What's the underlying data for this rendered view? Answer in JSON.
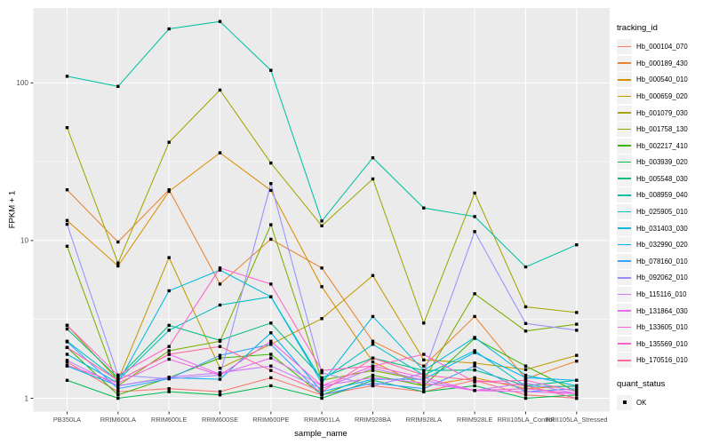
{
  "figure": {
    "background": "#FFFFFF",
    "panel_bg": "#EBEBEB",
    "grid_major": "#FFFFFF",
    "grid_minor": "#FFFFFF",
    "tick_color": "#333333",
    "tick_label_color": "#4D4D4D",
    "title_color": "#000000",
    "legend_key_bg": "#F2F2F2",
    "point_color": "#000000"
  },
  "chart_data": {
    "type": "line",
    "title": "",
    "xlabel": "sample_name",
    "ylabel": "FPKM + 1",
    "y_scale": "log10",
    "ylim": [
      0.95,
      290
    ],
    "y_ticks": [
      1,
      10,
      100
    ],
    "y_minor_breaks": [
      3.1623,
      31.623
    ],
    "grid": true,
    "legend_position": "right",
    "legend_title": "tracking_id",
    "quant_legend": {
      "title": "quant_status",
      "label": "OK"
    },
    "categories": [
      "PB350LA",
      "RRIM600LA",
      "RRIM600LE",
      "RRIM600SE",
      "RRIM600PE",
      "RRIM901LA",
      "RRIM928BA",
      "RRIM928LA",
      "RRIM928LE",
      "RRII105LA_Control",
      "RRII105LA_Stressed"
    ],
    "series": [
      {
        "name": "Hb_000104_070",
        "color": "#F8766D",
        "values": [
          1.7,
          1.1,
          1.15,
          1.1,
          1.35,
          1.05,
          1.2,
          1.1,
          1.3,
          1.05,
          1.0
        ]
      },
      {
        "name": "Hb_000189_430",
        "color": "#EA8331",
        "values": [
          21,
          9.8,
          21,
          5.3,
          10.2,
          6.7,
          2.3,
          1.6,
          3.3,
          1.33,
          1.72
        ]
      },
      {
        "name": "Hb_000540_010",
        "color": "#D89000",
        "values": [
          13.4,
          6.9,
          20.5,
          36,
          20.8,
          5.1,
          1.7,
          1.2,
          1.35,
          1.15,
          1.2
        ]
      },
      {
        "name": "Hb_000659_020",
        "color": "#C09B00",
        "values": [
          2.9,
          1.3,
          7.8,
          1.55,
          2.2,
          3.2,
          6.0,
          1.75,
          1.67,
          1.52,
          1.87
        ]
      },
      {
        "name": "Hb_001079_030",
        "color": "#A3A500",
        "values": [
          52,
          7.2,
          42,
          90,
          31,
          12.4,
          24.6,
          3.0,
          20,
          3.8,
          3.5
        ]
      },
      {
        "name": "Hb_001758_130",
        "color": "#7CAE00",
        "values": [
          9.2,
          1.2,
          2.0,
          2.3,
          12.6,
          1.3,
          1.5,
          1.3,
          4.6,
          2.67,
          2.95
        ]
      },
      {
        "name": "Hb_002217_410",
        "color": "#39B600",
        "values": [
          2.1,
          1.05,
          1.35,
          1.8,
          1.9,
          1.05,
          1.4,
          1.2,
          2.4,
          1.6,
          1.1
        ]
      },
      {
        "name": "Hb_003939_020",
        "color": "#00BB4E",
        "values": [
          1.3,
          1.0,
          1.1,
          1.05,
          1.2,
          1.0,
          1.3,
          1.1,
          1.2,
          1.0,
          1.05
        ]
      },
      {
        "name": "Hb_005548_030",
        "color": "#00BF7D",
        "values": [
          2.75,
          1.35,
          2.9,
          2.33,
          3.0,
          1.35,
          1.8,
          1.5,
          1.51,
          1.2,
          1.3
        ]
      },
      {
        "name": "Hb_008959_040",
        "color": "#00C1A3",
        "values": [
          110,
          95,
          220,
          245,
          120,
          13.3,
          33.5,
          16.1,
          14.2,
          6.8,
          9.4
        ]
      },
      {
        "name": "Hb_025905_010",
        "color": "#00BFC4",
        "values": [
          2.3,
          1.3,
          2.7,
          3.9,
          4.4,
          1.3,
          2.2,
          1.4,
          2.0,
          1.19,
          1.19
        ]
      },
      {
        "name": "Hb_031403_030",
        "color": "#00BAE0",
        "values": [
          1.9,
          1.25,
          4.8,
          6.5,
          4.4,
          1.25,
          3.3,
          1.5,
          2.43,
          1.4,
          1.2
        ]
      },
      {
        "name": "Hb_032990_020",
        "color": "#00B0F6",
        "values": [
          1.6,
          1.2,
          1.35,
          1.32,
          2.6,
          1.1,
          1.32,
          1.32,
          1.95,
          1.35,
          1.3
        ]
      },
      {
        "name": "Hb_078160_010",
        "color": "#35A2FF",
        "values": [
          2.28,
          1.15,
          1.33,
          1.87,
          2.2,
          1.05,
          1.25,
          1.15,
          1.6,
          1.1,
          1.15
        ]
      },
      {
        "name": "Hb_092062_010",
        "color": "#9590FF",
        "values": [
          12.7,
          1.4,
          1.33,
          1.4,
          23,
          1.45,
          1.2,
          1.44,
          11.4,
          2.98,
          2.7
        ]
      },
      {
        "name": "Hb_115116_010",
        "color": "#C77CFF",
        "values": [
          1.74,
          1.2,
          1.36,
          1.45,
          1.6,
          1.15,
          1.55,
          1.3,
          1.12,
          1.25,
          1.07
        ]
      },
      {
        "name": "Hb_131864_030",
        "color": "#E76BF3",
        "values": [
          2.1,
          1.3,
          1.9,
          1.42,
          1.8,
          1.2,
          1.35,
          1.25,
          1.12,
          1.1,
          1.07
        ]
      },
      {
        "name": "Hb_133605_010",
        "color": "#FA62DB",
        "values": [
          1.62,
          1.25,
          1.77,
          1.4,
          2.3,
          1.2,
          1.6,
          1.35,
          1.12,
          1.15,
          1.07
        ]
      },
      {
        "name": "Hb_135569_010",
        "color": "#FF61C9",
        "values": [
          2.9,
          1.4,
          2.13,
          6.7,
          5.3,
          1.5,
          1.6,
          1.9,
          1.27,
          1.3,
          1.1
        ]
      },
      {
        "name": "Hb_170516_010",
        "color": "#FF67A4",
        "values": [
          2.1,
          1.3,
          1.9,
          2.13,
          1.5,
          1.1,
          1.8,
          1.4,
          1.3,
          1.2,
          1.0
        ]
      }
    ]
  }
}
